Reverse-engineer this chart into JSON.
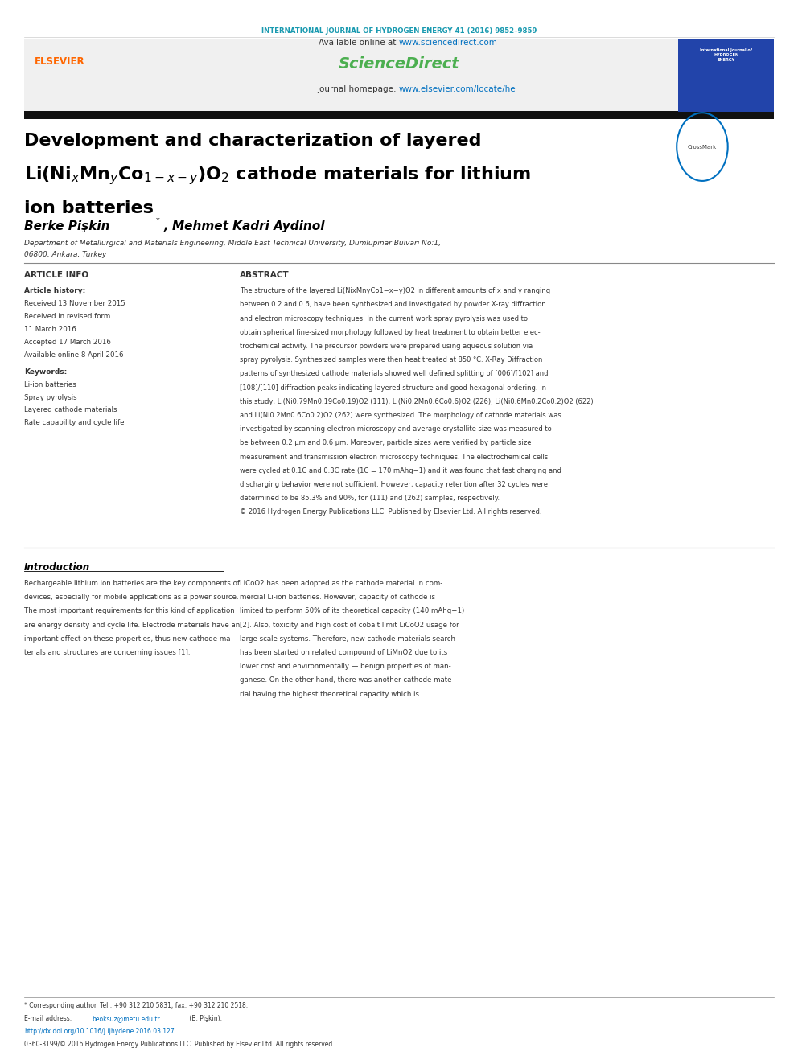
{
  "journal_header": "INTERNATIONAL JOURNAL OF HYDROGEN ENERGY 41 (2016) 9852–9859",
  "journal_header_color": "#1a9ab0",
  "available_online": "Available online at ",
  "sciencedirect_url": "www.sciencedirect.com",
  "sciencedirect_url_color": "#0070c0",
  "sciencedirect_logo": "ScienceDirect",
  "sciencedirect_logo_color": "#4CAF50",
  "journal_homepage": "journal homepage: ",
  "journal_homepage_url": "www.elsevier.com/locate/he",
  "journal_homepage_url_color": "#0070c0",
  "elsevier_text": "ELSEVIER",
  "elsevier_color": "#ff6600",
  "title_line1": "Development and characterization of layered",
  "title_line2_plain1": "Li(Ni",
  "title_line2_sub1": "x",
  "title_line2_plain2": "Mn",
  "title_line2_sub2": "y",
  "title_line2_plain3": "Co",
  "title_line2_sub3": "1−x−y",
  "title_line2_plain4": ")O",
  "title_line2_sub4": "2",
  "title_line2_plain5": " cathode materials for lithium",
  "title_line3": "ion batteries",
  "title_color": "#000000",
  "authors": "Berke Pişkin",
  "authors_star": "*",
  "authors2": ", Mehmet Kadri Aydinol",
  "authors_color": "#000000",
  "affiliation": "Department of Metallurgical and Materials Engineering, Middle East Technical University, Dumlupınar Bulvarı No:1,",
  "affiliation2": "06800, Ankara, Turkey",
  "article_info_header": "ARTICLE INFO",
  "article_history_header": "Article history:",
  "received1": "Received 13 November 2015",
  "revised": "Received in revised form",
  "revised2": "11 March 2016",
  "accepted": "Accepted 17 March 2016",
  "online": "Available online 8 April 2016",
  "keywords_header": "Keywords:",
  "keyword1": "Li-ion batteries",
  "keyword2": "Spray pyrolysis",
  "keyword3": "Layered cathode materials",
  "keyword4": "Rate capability and cycle life",
  "abstract_header": "ABSTRACT",
  "abstract_text": "The structure of the layered Li(NixMnyCo1−x−y)O2 in different amounts of x and y ranging\nbetween 0.2 and 0.6, have been synthesized and investigated by powder X-ray diffraction\nand electron microscopy techniques. In the current work spray pyrolysis was used to\nobtain spherical fine-sized morphology followed by heat treatment to obtain better elec-\ntrochemical activity. The precursor powders were prepared using aqueous solution via\nspray pyrolysis. Synthesized samples were then heat treated at 850 °C. X-Ray Diffraction\npatterns of synthesized cathode materials showed well defined splitting of [006]/[102] and\n[108]/[110] diffraction peaks indicating layered structure and good hexagonal ordering. In\nthis study, Li(Ni0.79Mn0.19Co0.19)O2 (111), Li(Ni0.2Mn0.6Co0.6)O2 (226), Li(Ni0.6Mn0.2Co0.2)O2 (622)\nand Li(Ni0.2Mn0.6Co0.2)O2 (262) were synthesized. The morphology of cathode materials was\ninvestigated by scanning electron microscopy and average crystallite size was measured to\nbe between 0.2 μm and 0.6 μm. Moreover, particle sizes were verified by particle size\nmeasurement and transmission electron microscopy techniques. The electrochemical cells\nwere cycled at 0.1C and 0.3C rate (1C = 170 mAhg−1) and it was found that fast charging and\ndischarging behavior were not sufficient. However, capacity retention after 32 cycles were\ndetermined to be 85.3% and 90%, for (111) and (262) samples, respectively.\n© 2016 Hydrogen Energy Publications LLC. Published by Elsevier Ltd. All rights reserved.",
  "intro_header": "Introduction",
  "intro_text1": "Rechargeable lithium ion batteries are the key components of\ndevices, especially for mobile applications as a power source.\nThe most important requirements for this kind of application\nare energy density and cycle life. Electrode materials have an\nimportant effect on these properties, thus new cathode ma-\nterials and structures are concerning issues [1].",
  "intro_text2": "LiCoO2 has been adopted as the cathode material in com-\nmercial Li-ion batteries. However, capacity of cathode is\nlimited to perform 50% of its theoretical capacity (140 mAhg−1)\n[2]. Also, toxicity and high cost of cobalt limit LiCoO2 usage for\nlarge scale systems. Therefore, new cathode materials search\nhas been started on related compound of LiMnO2 due to its\nlower cost and environmentally — benign properties of man-\nganese. On the other hand, there was another cathode mate-\nrial having the highest theoretical capacity which is",
  "footnote1": "* Corresponding author. Tel.: +90 312 210 5831; fax: +90 312 210 2518.",
  "footnote2": "E-mail address: beoksuz@metu.edu.tr (B. Pişkin).",
  "footnote3": "http://dx.doi.org/10.1016/j.ijhydene.2016.03.127",
  "footnote4": "0360-3199/© 2016 Hydrogen Energy Publications LLC. Published by Elsevier Ltd. All rights reserved.",
  "footnote3_color": "#0070c0",
  "footnote2_email_color": "#0070c0",
  "bg_color": "#ffffff",
  "header_bg": "#e8f4f8",
  "dark_bar_color": "#1a1a1a",
  "section_line_color": "#000000"
}
